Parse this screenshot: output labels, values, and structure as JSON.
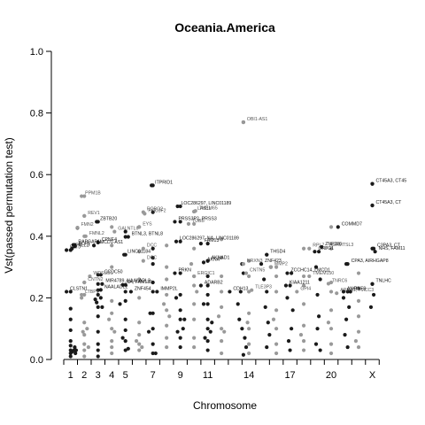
{
  "chart_data": {
    "type": "scatter",
    "title": "Oceania.America",
    "xlabel": "Chromosome",
    "ylabel": "Vst(passed permutation test)",
    "ylim": [
      0,
      1
    ],
    "y_ticks": [
      "0.0",
      "0.2",
      "0.4",
      "0.6",
      "0.8",
      "1.0"
    ],
    "x_tick_labels": [
      "1",
      "2",
      "3",
      "4",
      "5",
      "7",
      "9",
      "11",
      "14",
      "17",
      "20",
      "X"
    ],
    "x_tick_positions": [
      1,
      2,
      3,
      4,
      5,
      7,
      9,
      11,
      14,
      17,
      20,
      23
    ],
    "chromosome_boundaries": [
      0.5,
      1.5,
      2.5,
      3.5,
      4.5,
      5.5,
      6.5,
      7.5,
      8.5,
      9.5,
      10.5,
      11.5,
      12.5,
      13.5,
      14.5,
      15.5,
      16.5,
      17.5,
      18.5,
      19.5,
      20.5,
      21.5,
      22.5,
      23.5
    ],
    "xlim": [
      0.0,
      24.0
    ],
    "grid": false,
    "colors": {
      "odd_chromosome": "#1a1a1a",
      "even_chromosome": "#999999",
      "text": "#000000"
    },
    "labeled_points": [
      {
        "label": "OBI1-AS1",
        "x": 13.6,
        "y": 0.77
      },
      {
        "label": "ITPRID1",
        "x": 6.9,
        "y": 0.565
      },
      {
        "label": "CT45A3, CT45",
        "x": 23.0,
        "y": 0.57
      },
      {
        "label": "CT45A3, CT",
        "x": 23.0,
        "y": 0.5
      },
      {
        "label": "LOC286297, LINC01189",
        "x": 8.8,
        "y": 0.497
      },
      {
        "label": "TMEM65",
        "x": 10.1,
        "y": 0.482
      },
      {
        "label": "LAS1L",
        "x": 10.0,
        "y": 0.48
      },
      {
        "label": "ROBO2",
        "x": 6.3,
        "y": 0.478
      },
      {
        "label": "POU3F2",
        "x": 6.4,
        "y": 0.473
      },
      {
        "label": "PPM1B",
        "x": 1.8,
        "y": 0.53
      },
      {
        "label": "REV1",
        "x": 2.0,
        "y": 0.466
      },
      {
        "label": "ZBTB20",
        "x": 2.9,
        "y": 0.447
      },
      {
        "label": "PRSS3P2, PRSS3",
        "x": 8.6,
        "y": 0.447
      },
      {
        "label": "TUBB",
        "x": 9.6,
        "y": 0.44
      },
      {
        "label": "EYS",
        "x": 6.0,
        "y": 0.43
      },
      {
        "label": "FMN2",
        "x": 1.5,
        "y": 0.428
      },
      {
        "label": "COMMD7",
        "x": 20.5,
        "y": 0.43
      },
      {
        "label": "GALNTL6",
        "x": 4.2,
        "y": 0.415
      },
      {
        "label": "FMNL2",
        "x": 2.1,
        "y": 0.4
      },
      {
        "label": "BTNL3, BTNL8",
        "x": 5.2,
        "y": 0.398
      },
      {
        "label": "LOC286297, NA, LINC01189",
        "x": 8.7,
        "y": 0.383
      },
      {
        "label": "FAM13",
        "x": 10.5,
        "y": 0.376
      },
      {
        "label": "CPNE4",
        "x": 3.0,
        "y": 0.38
      },
      {
        "label": "LMCD1-AS1",
        "x": 2.7,
        "y": 0.37
      },
      {
        "label": "RAPGAP1L",
        "x": 1.3,
        "y": 0.372
      },
      {
        "label": "ACP1",
        "x": 1.3,
        "y": 0.367
      },
      {
        "label": "PALLD",
        "x": 1.1,
        "y": 0.36
      },
      {
        "label": "PATJ",
        "x": 0.7,
        "y": 0.355
      },
      {
        "label": "LINC01184",
        "x": 4.9,
        "y": 0.34
      },
      {
        "label": "THSD4",
        "x": 15.3,
        "y": 0.34
      },
      {
        "label": "OR7G1",
        "x": 18.8,
        "y": 0.35
      },
      {
        "label": "RPL7",
        "x": 18.4,
        "y": 0.36
      },
      {
        "label": "ZNF286",
        "x": 19.3,
        "y": 0.365
      },
      {
        "label": "ADAMTSL3",
        "x": 19.6,
        "y": 0.362
      },
      {
        "label": "C3PA3, CT",
        "x": 23.1,
        "y": 0.36
      },
      {
        "label": "NHS, FAM11",
        "x": 23.2,
        "y": 0.35
      },
      {
        "label": "DCC",
        "x": 6.3,
        "y": 0.36
      },
      {
        "label": "DCC",
        "x": 6.3,
        "y": 0.32
      },
      {
        "label": "CCDC50",
        "x": 3.2,
        "y": 0.275
      },
      {
        "label": "WDSUB1",
        "x": 2.4,
        "y": 0.27
      },
      {
        "label": "CNTN2",
        "x": 2.0,
        "y": 0.25
      },
      {
        "label": "MIR4789, NAALADL2",
        "x": 3.3,
        "y": 0.245
      },
      {
        "label": "NA, FAM135",
        "x": 4.8,
        "y": 0.242
      },
      {
        "label": "LTBP1",
        "x": 1.8,
        "y": 0.21
      },
      {
        "label": "CLSTN1",
        "x": 0.7,
        "y": 0.22
      },
      {
        "label": "NAALADL2",
        "x": 3.2,
        "y": 0.226
      },
      {
        "label": "PRKN",
        "x": 8.6,
        "y": 0.28
      },
      {
        "label": "ERGIC1",
        "x": 10.0,
        "y": 0.27
      },
      {
        "label": "MMP2",
        "x": 15.6,
        "y": 0.3
      },
      {
        "label": "CNTN5",
        "x": 13.8,
        "y": 0.28
      },
      {
        "label": "ZNF454",
        "x": 5.4,
        "y": 0.22
      },
      {
        "label": "IMMP2L",
        "x": 7.3,
        "y": 0.22
      },
      {
        "label": "CPA3, AIRHGAP8",
        "x": 21.2,
        "y": 0.31
      },
      {
        "label": "TMEM150",
        "x": 18.4,
        "y": 0.27
      },
      {
        "label": "TNRC6",
        "x": 19.8,
        "y": 0.246
      },
      {
        "label": "ADARB2",
        "x": 10.5,
        "y": 0.24
      },
      {
        "label": "KIAA1211",
        "x": 16.7,
        "y": 0.24
      },
      {
        "label": "TLE3P3",
        "x": 14.2,
        "y": 0.225
      },
      {
        "label": "CDH13",
        "x": 12.6,
        "y": 0.22
      },
      {
        "label": "ARRA1, TMCC3",
        "x": 20.4,
        "y": 0.215
      },
      {
        "label": "ANO9",
        "x": 20.9,
        "y": 0.22
      },
      {
        "label": "RNF9",
        "x": 21.4,
        "y": 0.22
      },
      {
        "label": "TNLHC",
        "x": 23.0,
        "y": 0.245
      },
      {
        "label": "NRXN3",
        "x": 13.6,
        "y": 0.31
      },
      {
        "label": "AKNA",
        "x": 10.7,
        "y": 0.315
      },
      {
        "label": "AKNAD1",
        "x": 11.0,
        "y": 0.32
      },
      {
        "label": "ZNF423",
        "x": 14.9,
        "y": 0.31
      },
      {
        "label": "ZCCHC14, LMCD1",
        "x": 16.8,
        "y": 0.28
      },
      {
        "label": "GPI4",
        "x": 17.5,
        "y": 0.22
      }
    ],
    "odd_points": [
      [
        1,
        0.355
      ],
      [
        1,
        0.22
      ],
      [
        1,
        0.165
      ],
      [
        1,
        0.13
      ],
      [
        1,
        0.095
      ],
      [
        1,
        0.06
      ],
      [
        1,
        0.045
      ],
      [
        1,
        0.03
      ],
      [
        1,
        0.02
      ],
      [
        1,
        0.01
      ],
      [
        1.2,
        0.372
      ],
      [
        1.5,
        0.427
      ],
      [
        1.3,
        0.04
      ],
      [
        1.4,
        0.03
      ],
      [
        1.1,
        0.025
      ],
      [
        1.25,
        0.03
      ],
      [
        1.35,
        0.02
      ],
      [
        3,
        0.447
      ],
      [
        3,
        0.38
      ],
      [
        3,
        0.275
      ],
      [
        3,
        0.245
      ],
      [
        3,
        0.225
      ],
      [
        3,
        0.21
      ],
      [
        3,
        0.17
      ],
      [
        3,
        0.14
      ],
      [
        3,
        0.09
      ],
      [
        3,
        0.05
      ],
      [
        3,
        0.03
      ],
      [
        3,
        0.01
      ],
      [
        2.8,
        0.195
      ],
      [
        2.9,
        0.185
      ],
      [
        3.2,
        0.2
      ],
      [
        3.3,
        0.17
      ],
      [
        5,
        0.415
      ],
      [
        5,
        0.398
      ],
      [
        5,
        0.34
      ],
      [
        5,
        0.242
      ],
      [
        5,
        0.22
      ],
      [
        5,
        0.19
      ],
      [
        5,
        0.13
      ],
      [
        5,
        0.095
      ],
      [
        5,
        0.06
      ],
      [
        5,
        0.03
      ],
      [
        4.6,
        0.18
      ],
      [
        4.8,
        0.07
      ],
      [
        5.2,
        0.035
      ],
      [
        7,
        0.565
      ],
      [
        7,
        0.478
      ],
      [
        7,
        0.36
      ],
      [
        7,
        0.33
      ],
      [
        7,
        0.31
      ],
      [
        7,
        0.25
      ],
      [
        7,
        0.22
      ],
      [
        7,
        0.15
      ],
      [
        7,
        0.1
      ],
      [
        7,
        0.05
      ],
      [
        7,
        0.02
      ],
      [
        6.7,
        0.09
      ],
      [
        6.8,
        0.15
      ],
      [
        7.2,
        0.02
      ],
      [
        9,
        0.497
      ],
      [
        9,
        0.447
      ],
      [
        9,
        0.383
      ],
      [
        9,
        0.28
      ],
      [
        9,
        0.21
      ],
      [
        9,
        0.16
      ],
      [
        9,
        0.13
      ],
      [
        9,
        0.07
      ],
      [
        9,
        0.04
      ],
      [
        8.7,
        0.2
      ],
      [
        8.8,
        0.09
      ],
      [
        9.2,
        0.1
      ],
      [
        9.3,
        0.13
      ],
      [
        11,
        0.376
      ],
      [
        11,
        0.32
      ],
      [
        11,
        0.27
      ],
      [
        11,
        0.24
      ],
      [
        11,
        0.21
      ],
      [
        11,
        0.18
      ],
      [
        11,
        0.13
      ],
      [
        11,
        0.1
      ],
      [
        11,
        0.06
      ],
      [
        11,
        0.03
      ],
      [
        10.7,
        0.18
      ],
      [
        10.8,
        0.07
      ],
      [
        11.2,
        0.09
      ],
      [
        11.3,
        0.12
      ],
      [
        13.6,
        0.77
      ],
      [
        13.5,
        0.31
      ],
      [
        13.6,
        0.28
      ],
      [
        13.4,
        0.22
      ],
      [
        13.2,
        0.18
      ],
      [
        13.3,
        0.13
      ],
      [
        13.5,
        0.1
      ],
      [
        13.7,
        0.07
      ],
      [
        13.8,
        0.04
      ],
      [
        13.6,
        0.015
      ],
      [
        15.3,
        0.34
      ],
      [
        15.6,
        0.3
      ],
      [
        15.1,
        0.26
      ],
      [
        15.3,
        0.22
      ],
      [
        15.2,
        0.17
      ],
      [
        15.4,
        0.12
      ],
      [
        15.5,
        0.08
      ],
      [
        15.3,
        0.04
      ],
      [
        17.1,
        0.28
      ],
      [
        17.0,
        0.24
      ],
      [
        16.8,
        0.2
      ],
      [
        17.2,
        0.16
      ],
      [
        17.1,
        0.1
      ],
      [
        16.9,
        0.06
      ],
      [
        17.0,
        0.03
      ],
      [
        19.1,
        0.35
      ],
      [
        18.9,
        0.3
      ],
      [
        19.2,
        0.26
      ],
      [
        19.0,
        0.21
      ],
      [
        19.1,
        0.14
      ],
      [
        19.0,
        0.1
      ],
      [
        18.9,
        0.05
      ],
      [
        19.2,
        0.03
      ],
      [
        21.1,
        0.31
      ],
      [
        21.2,
        0.22
      ],
      [
        20.9,
        0.2
      ],
      [
        21.3,
        0.17
      ],
      [
        21.1,
        0.13
      ],
      [
        21.0,
        0.08
      ],
      [
        21.2,
        0.04
      ],
      [
        23,
        0.57
      ],
      [
        23,
        0.5
      ],
      [
        23,
        0.36
      ],
      [
        23,
        0.245
      ],
      [
        23.1,
        0.21
      ],
      [
        22.9,
        0.17
      ]
    ],
    "even_points": [
      [
        2,
        0.53
      ],
      [
        2,
        0.466
      ],
      [
        2,
        0.4
      ],
      [
        2,
        0.25
      ],
      [
        2,
        0.21
      ],
      [
        2,
        0.12
      ],
      [
        2,
        0.08
      ],
      [
        2,
        0.05
      ],
      [
        2,
        0.03
      ],
      [
        2,
        0.01
      ],
      [
        1.8,
        0.2
      ],
      [
        1.9,
        0.09
      ],
      [
        2.2,
        0.1
      ],
      [
        2.3,
        0.04
      ],
      [
        4,
        0.43
      ],
      [
        4,
        0.37
      ],
      [
        4,
        0.3
      ],
      [
        4,
        0.19
      ],
      [
        4,
        0.15
      ],
      [
        4,
        0.1
      ],
      [
        4,
        0.06
      ],
      [
        4,
        0.04
      ],
      [
        4,
        0.02
      ],
      [
        3.8,
        0.13
      ],
      [
        4.2,
        0.09
      ],
      [
        6,
        0.43
      ],
      [
        6,
        0.35
      ],
      [
        6,
        0.26
      ],
      [
        6,
        0.2
      ],
      [
        6,
        0.12
      ],
      [
        6,
        0.08
      ],
      [
        6,
        0.05
      ],
      [
        6,
        0.03
      ],
      [
        5.8,
        0.06
      ],
      [
        6.2,
        0.04
      ],
      [
        8,
        0.37
      ],
      [
        8,
        0.3
      ],
      [
        8,
        0.26
      ],
      [
        8,
        0.21
      ],
      [
        8,
        0.16
      ],
      [
        8,
        0.11
      ],
      [
        8,
        0.07
      ],
      [
        8,
        0.04
      ],
      [
        7.8,
        0.18
      ],
      [
        8.2,
        0.14
      ],
      [
        10,
        0.48
      ],
      [
        10,
        0.44
      ],
      [
        10,
        0.36
      ],
      [
        10,
        0.27
      ],
      [
        10,
        0.24
      ],
      [
        10,
        0.18
      ],
      [
        10,
        0.13
      ],
      [
        10,
        0.07
      ],
      [
        10,
        0.04
      ],
      [
        9.8,
        0.31
      ],
      [
        10.2,
        0.22
      ],
      [
        12,
        0.39
      ],
      [
        12,
        0.33
      ],
      [
        12,
        0.27
      ],
      [
        12,
        0.22
      ],
      [
        12,
        0.17
      ],
      [
        12,
        0.1
      ],
      [
        12,
        0.06
      ],
      [
        12,
        0.02
      ],
      [
        11.8,
        0.14
      ],
      [
        12.2,
        0.09
      ],
      [
        14,
        0.32
      ],
      [
        14,
        0.27
      ],
      [
        14,
        0.22
      ],
      [
        14,
        0.15
      ],
      [
        14,
        0.1
      ],
      [
        14,
        0.05
      ],
      [
        14,
        0.02
      ],
      [
        13.9,
        0.12
      ],
      [
        16,
        0.3
      ],
      [
        16,
        0.27
      ],
      [
        16,
        0.22
      ],
      [
        16,
        0.16
      ],
      [
        16,
        0.1
      ],
      [
        16,
        0.05
      ],
      [
        16,
        0.02
      ],
      [
        15.8,
        0.13
      ],
      [
        18,
        0.36
      ],
      [
        18,
        0.27
      ],
      [
        18,
        0.24
      ],
      [
        18,
        0.18
      ],
      [
        18,
        0.11
      ],
      [
        18,
        0.06
      ],
      [
        18,
        0.03
      ],
      [
        17.8,
        0.08
      ],
      [
        20,
        0.43
      ],
      [
        20,
        0.36
      ],
      [
        20,
        0.25
      ],
      [
        20,
        0.22
      ],
      [
        20,
        0.16
      ],
      [
        20,
        0.1
      ],
      [
        20,
        0.05
      ],
      [
        20,
        0.02
      ],
      [
        19.8,
        0.12
      ],
      [
        22,
        0.28
      ],
      [
        22,
        0.23
      ],
      [
        22,
        0.19
      ],
      [
        22,
        0.14
      ],
      [
        22,
        0.09
      ],
      [
        22,
        0.04
      ],
      [
        21.8,
        0.06
      ]
    ]
  }
}
